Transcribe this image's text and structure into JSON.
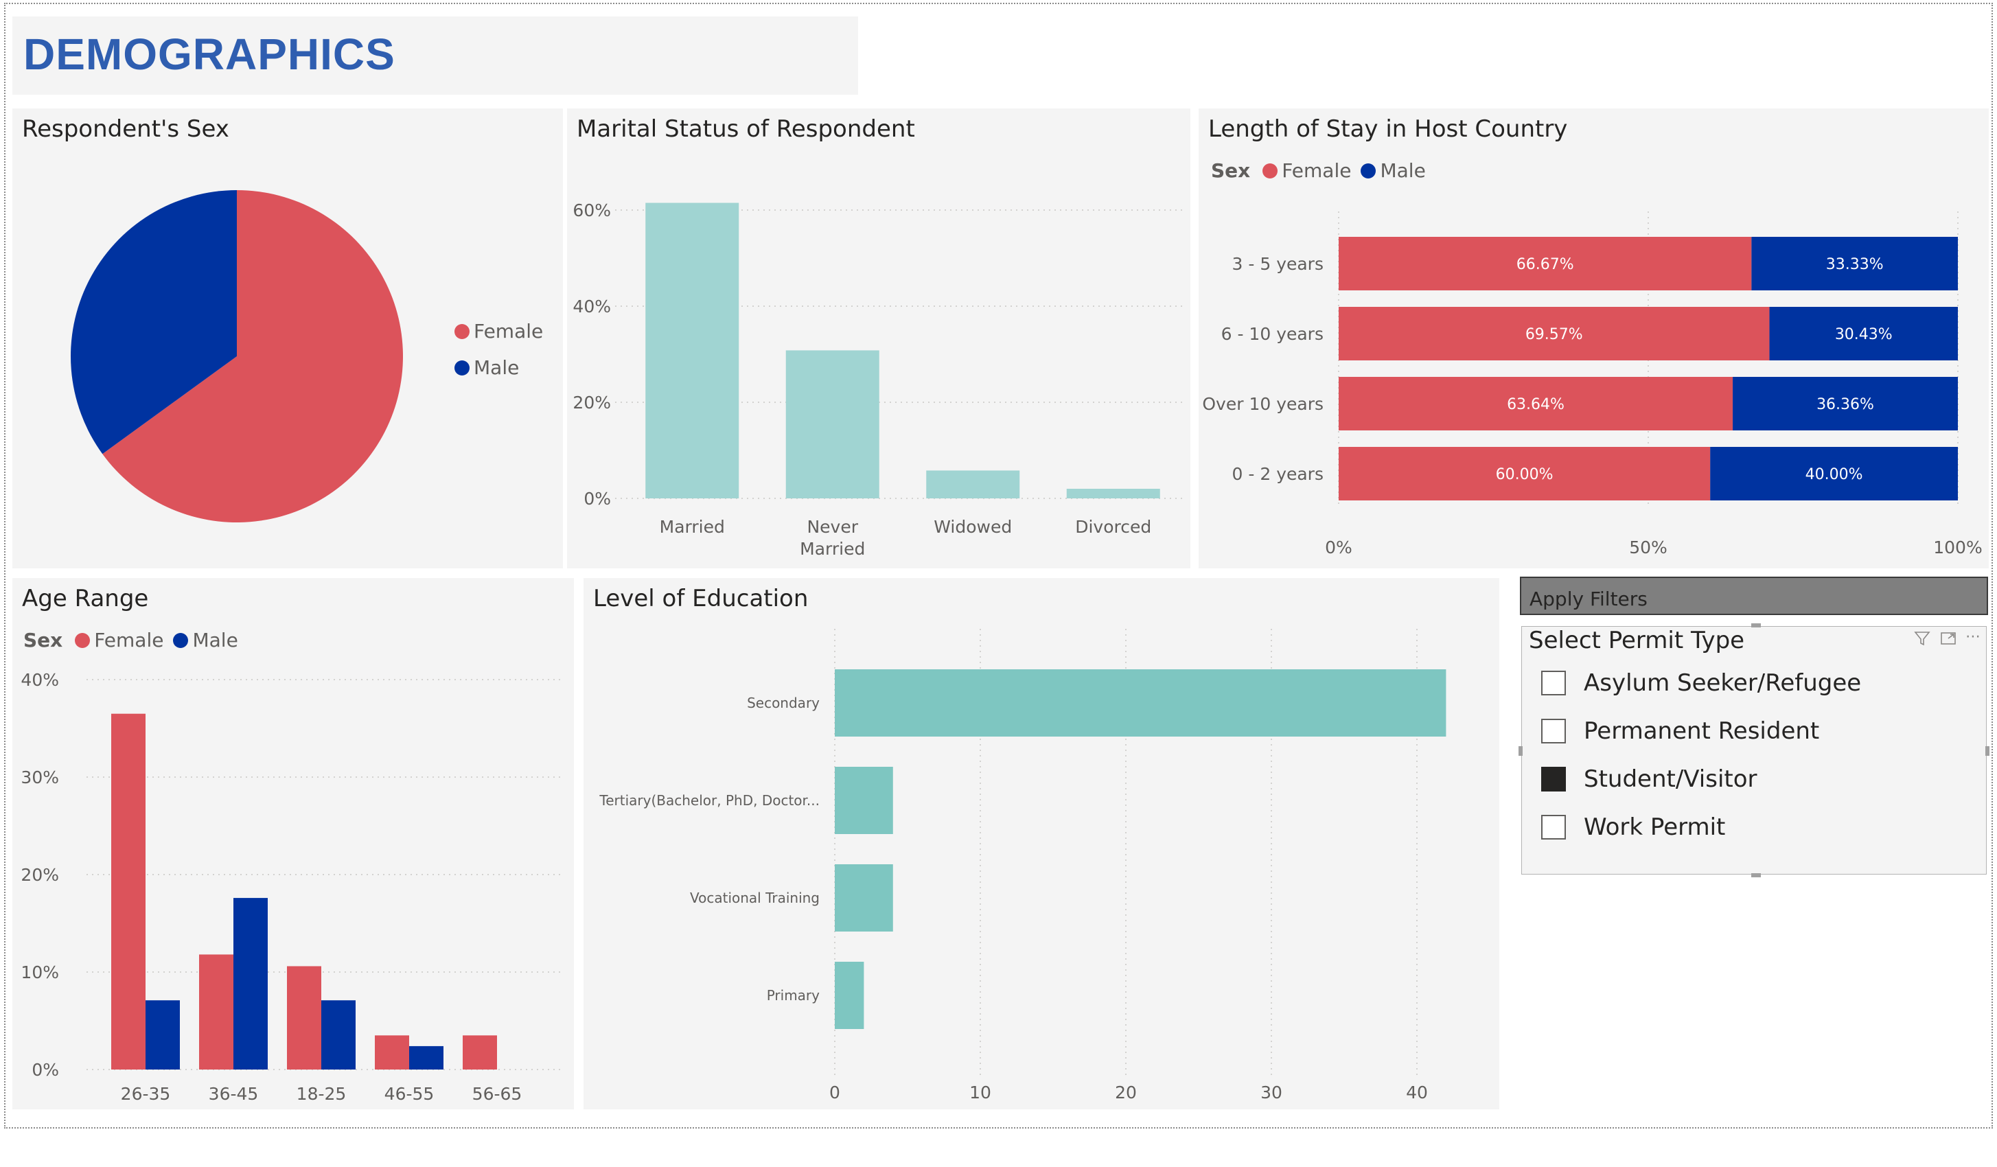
{
  "page_title": "DEMOGRAPHICS",
  "colors": {
    "female": "#dc535b",
    "male": "#0033a0",
    "teal_light": "#a0d4d2",
    "teal": "#7ec6c1",
    "title_blue": "#2f5eb0"
  },
  "sex_chart": {
    "title": "Respondent's Sex",
    "legend": [
      "Female",
      "Male"
    ]
  },
  "marital_chart": {
    "title": "Marital Status of Respondent"
  },
  "stay_chart": {
    "title": "Length of Stay in Host Country",
    "legend_title": "Sex",
    "legend": [
      "Female",
      "Male"
    ]
  },
  "age_chart": {
    "title": "Age Range",
    "legend_title": "Sex",
    "legend": [
      "Female",
      "Male"
    ]
  },
  "education_chart": {
    "title": "Level of Education"
  },
  "filters": {
    "apply_label": "Apply Filters",
    "slicer_title": "Select Permit Type",
    "options": [
      {
        "label": "Asylum Seeker/Refugee",
        "checked": false
      },
      {
        "label": "Permanent Resident",
        "checked": false
      },
      {
        "label": "Student/Visitor",
        "checked": true
      },
      {
        "label": "Work Permit",
        "checked": false
      }
    ]
  },
  "chart_data": [
    {
      "type": "pie",
      "title": "Respondent's Sex",
      "slices": [
        {
          "name": "Female",
          "value": 65
        },
        {
          "name": "Male",
          "value": 35
        }
      ]
    },
    {
      "type": "bar",
      "title": "Marital Status of Respondent",
      "categories": [
        "Married",
        "Never Married",
        "Widowed",
        "Divorced"
      ],
      "category_lines": [
        [
          "Married"
        ],
        [
          "Never",
          "Married"
        ],
        [
          "Widowed"
        ],
        [
          "Divorced"
        ]
      ],
      "values": [
        61.5,
        30.8,
        5.8,
        2.0
      ],
      "ylim": [
        0,
        60
      ],
      "yticks": [
        "0%",
        "20%",
        "40%",
        "60%"
      ],
      "grid": true
    },
    {
      "type": "bar",
      "orientation": "horizontal-stacked-100",
      "title": "Length of Stay in Host Country",
      "categories": [
        "3 - 5 years",
        "6 - 10 years",
        "Over 10 years",
        "0 - 2 years"
      ],
      "series": [
        {
          "name": "Female",
          "values": [
            66.67,
            69.57,
            63.64,
            60.0
          ],
          "labels": [
            "66.67%",
            "69.57%",
            "63.64%",
            "60.00%"
          ]
        },
        {
          "name": "Male",
          "values": [
            33.33,
            30.43,
            36.36,
            40.0
          ],
          "labels": [
            "33.33%",
            "30.43%",
            "36.36%",
            "40.00%"
          ]
        }
      ],
      "xticks": [
        "0%",
        "50%",
        "100%"
      ],
      "legend_placement": "top-left"
    },
    {
      "type": "bar",
      "title": "Age Range",
      "categories": [
        "26-35",
        "36-45",
        "18-25",
        "46-55",
        "56-65"
      ],
      "series": [
        {
          "name": "Female",
          "values": [
            36.5,
            11.8,
            10.6,
            3.5,
            3.5
          ]
        },
        {
          "name": "Male",
          "values": [
            7.1,
            17.6,
            7.1,
            2.4,
            0
          ]
        }
      ],
      "ylim": [
        0,
        40
      ],
      "yticks": [
        "0%",
        "10%",
        "20%",
        "30%",
        "40%"
      ],
      "grid": true,
      "legend_placement": "top-left"
    },
    {
      "type": "bar",
      "orientation": "horizontal",
      "title": "Level of Education",
      "categories": [
        "Secondary",
        "Tertiary(Bachelor, PhD, Doctor...",
        "Vocational Training",
        "Primary"
      ],
      "values": [
        42,
        4,
        4,
        2
      ],
      "xlim": [
        0,
        45
      ],
      "xticks": [
        "0",
        "10",
        "20",
        "30",
        "40"
      ],
      "grid": true
    }
  ]
}
